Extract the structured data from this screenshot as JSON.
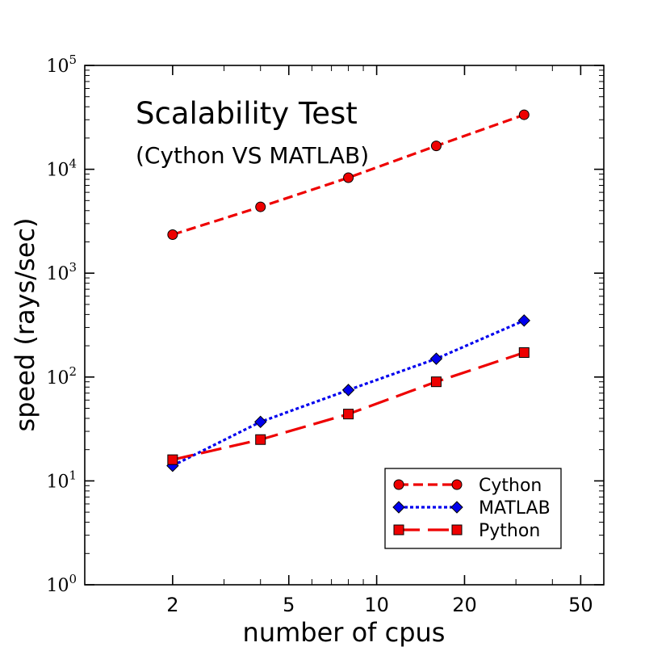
{
  "chart_data": {
    "type": "line",
    "title": "Scalability Test",
    "subtitle": "(Cython VS MATLAB)",
    "xlabel": "number of cpus",
    "ylabel": "speed (rays/sec)",
    "xscale": "log",
    "yscale": "log",
    "xlim": [
      1,
      60
    ],
    "ylim": [
      1,
      100000
    ],
    "x_ticks": [
      2,
      5,
      10,
      20,
      50
    ],
    "x_tick_labels": [
      "2",
      "5",
      "10",
      "20",
      "50"
    ],
    "y_ticks": [
      1,
      10,
      100,
      1000,
      10000,
      100000
    ],
    "y_tick_labels": [
      {
        "base": "10",
        "exp": "0"
      },
      {
        "base": "10",
        "exp": "1"
      },
      {
        "base": "10",
        "exp": "2"
      },
      {
        "base": "10",
        "exp": "3"
      },
      {
        "base": "10",
        "exp": "4"
      },
      {
        "base": "10",
        "exp": "5"
      }
    ],
    "legend_position": "lower-right",
    "series": [
      {
        "name": "Cython",
        "x": [
          2,
          4,
          8,
          16,
          32
        ],
        "values": [
          2350,
          4350,
          8300,
          16800,
          33500
        ],
        "color": "#ee0000",
        "marker": "circle",
        "dash": "dashed"
      },
      {
        "name": "MATLAB",
        "x": [
          2,
          4,
          8,
          16,
          32
        ],
        "values": [
          14,
          37,
          75,
          150,
          350
        ],
        "color": "#0000ee",
        "marker": "diamond",
        "dash": "dotted"
      },
      {
        "name": "Python",
        "x": [
          2,
          4,
          8,
          16,
          32
        ],
        "values": [
          16,
          25,
          44,
          90,
          172
        ],
        "color": "#ee0000",
        "marker": "square",
        "dash": "longdash"
      }
    ]
  }
}
